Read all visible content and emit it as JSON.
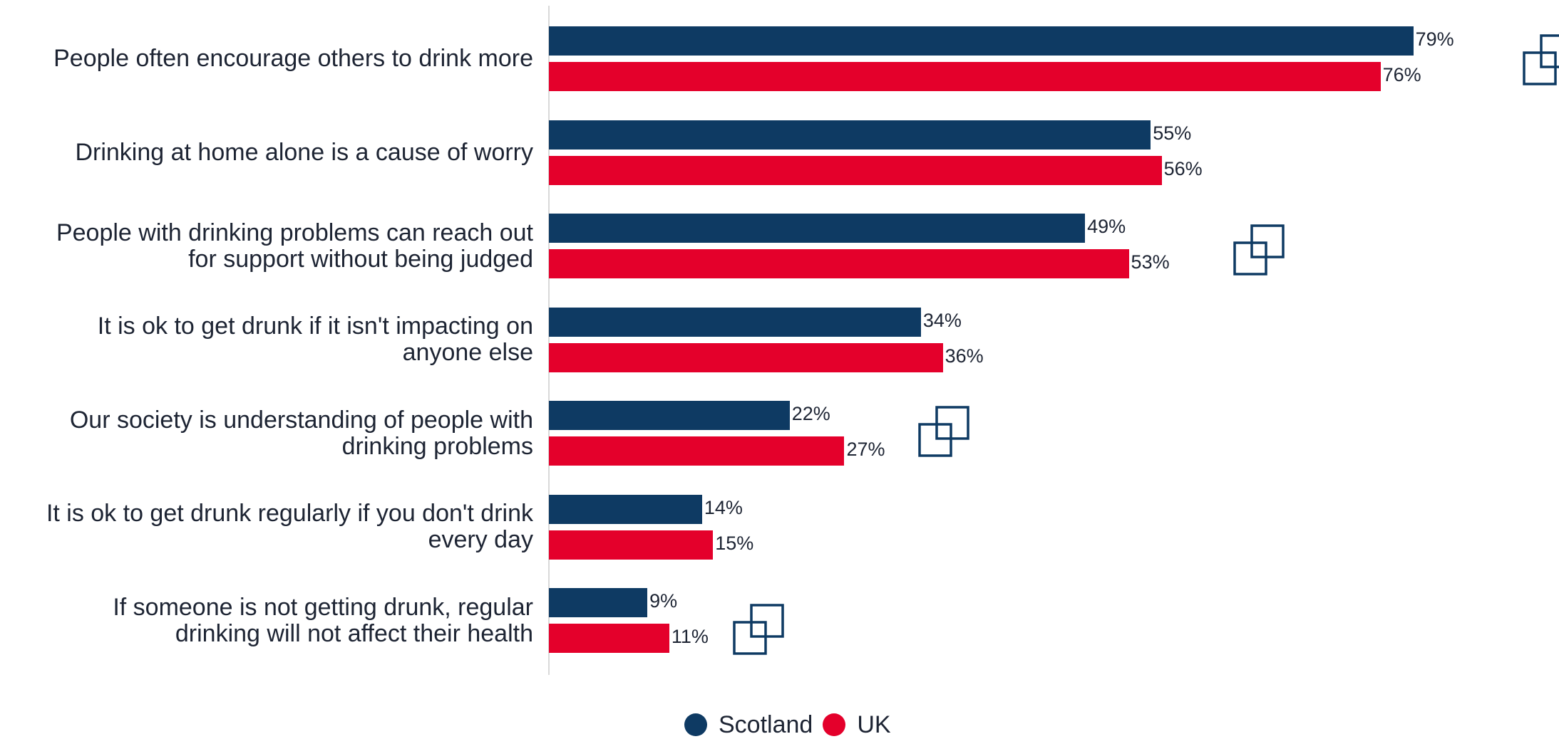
{
  "chart_data": {
    "type": "bar",
    "orientation": "horizontal",
    "categories": [
      "People often encourage others to drink more",
      "Drinking at home alone is a cause of worry",
      "People with drinking problems can reach out\nfor support without being judged",
      "It is ok to get drunk if it isn't impacting on\nanyone else",
      "Our society is understanding of people with\ndrinking problems",
      "It is ok to get drunk regularly if you don't drink\nevery day",
      "If someone is not getting drunk, regular\ndrinking will not affect their health"
    ],
    "series": [
      {
        "name": "Scotland",
        "color": "#0e3a63",
        "values": [
          79,
          55,
          49,
          34,
          22,
          14,
          9
        ],
        "labels": [
          "79%",
          "55%",
          "49%",
          "34%",
          "22%",
          "14%",
          "9%"
        ]
      },
      {
        "name": "UK",
        "color": "#e4002b",
        "values": [
          76,
          56,
          53,
          36,
          27,
          15,
          11
        ],
        "labels": [
          "76%",
          "56%",
          "53%",
          "36%",
          "27%",
          "15%",
          "11%"
        ]
      }
    ],
    "xlim": [
      0,
      100
    ],
    "grid": false,
    "legend_position": "bottom"
  },
  "decorations": {
    "icon_name": "overlapping-squares-icon",
    "icon_color": "#0e3a63",
    "icon_count": 4
  }
}
